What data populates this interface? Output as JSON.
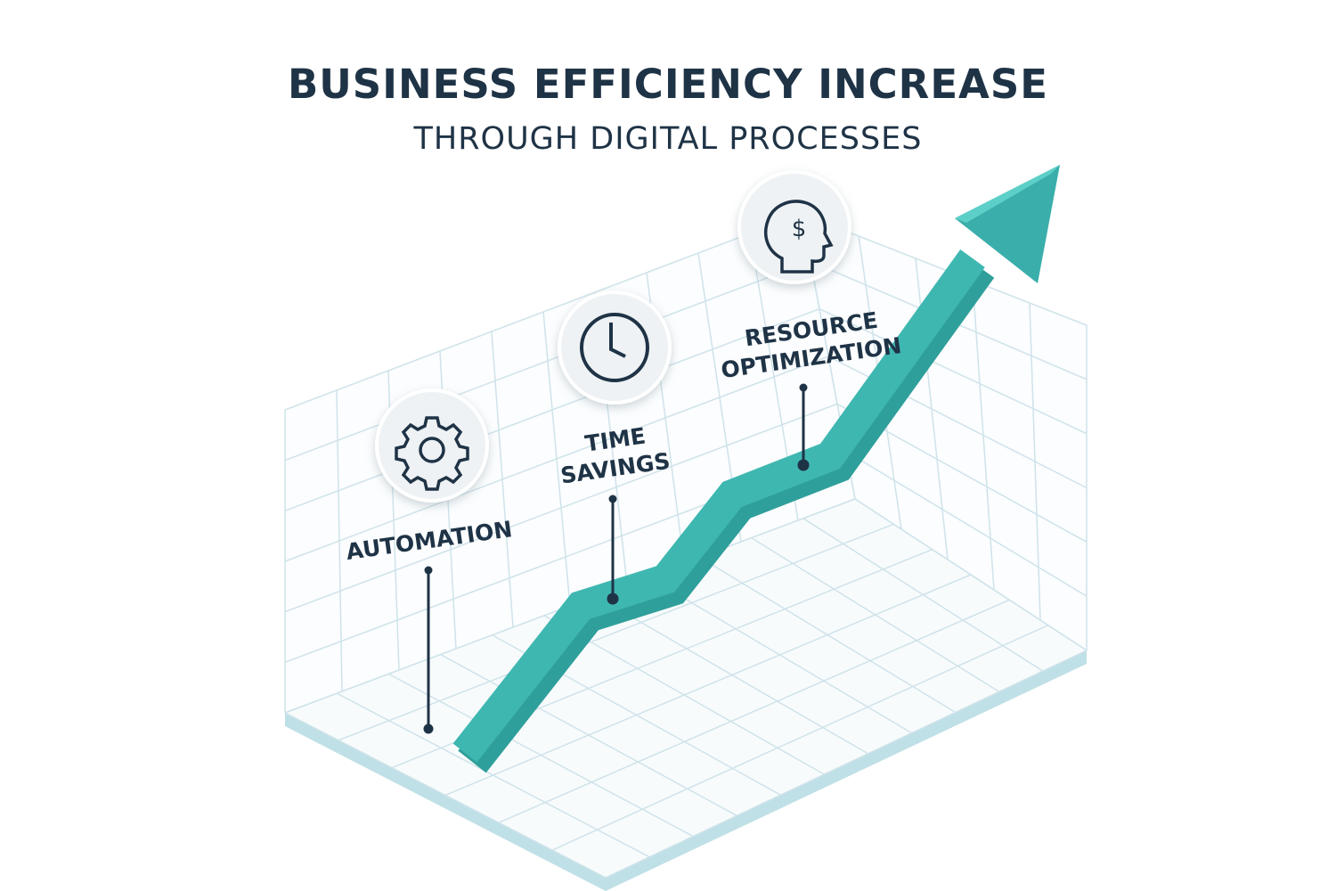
{
  "header": {
    "title": "BUSINESS EFFICIENCY INCREASE",
    "subtitle": "THROUGH DIGITAL PROCESSES"
  },
  "milestones": [
    {
      "label_lines": [
        "AUTOMATION"
      ],
      "icon": "gear-icon"
    },
    {
      "label_lines": [
        "TIME",
        "SAVINGS"
      ],
      "icon": "clock-icon"
    },
    {
      "label_lines": [
        "RESOURCE",
        "OPTIMIZATION"
      ],
      "icon": "head-dollar-icon"
    }
  ],
  "colors": {
    "text": "#1f3346",
    "arrow": "#3aaeaa",
    "arrow_top": "#55c9c2",
    "grid": "#cfe3ea",
    "badge": "#eef2f4"
  }
}
